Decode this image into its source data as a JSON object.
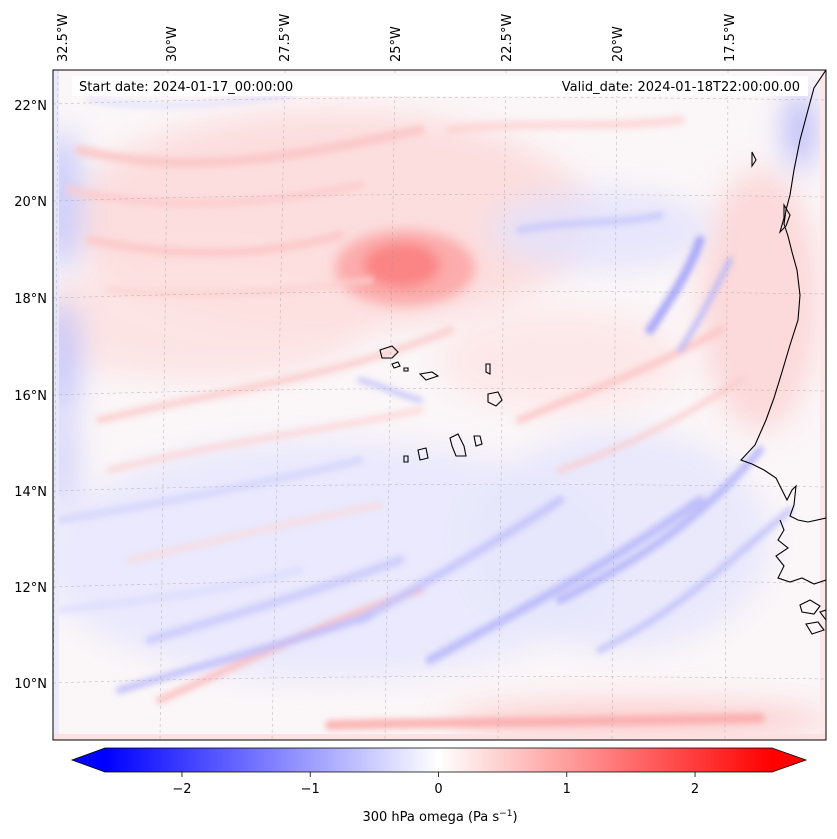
{
  "map": {
    "start_date": "Start date: 2024-01-17_00:00:00",
    "valid_date": "Valid_date: 2024-01-18T22:00:00.00",
    "lon_labels": [
      "32.5°W",
      "30°W",
      "27.5°W",
      "25°W",
      "22.5°W",
      "20°W",
      "17.5°W"
    ],
    "lat_labels": [
      "22°N",
      "20°N",
      "18°N",
      "16°N",
      "14°N",
      "12°N",
      "10°N"
    ],
    "gridlines": true,
    "field": "300 hPa omega",
    "colormap": "bwr"
  },
  "colorbar": {
    "ticks": [
      "−2",
      "−1",
      "0",
      "1",
      "2"
    ],
    "tick_values": [
      -2,
      -1,
      0,
      1,
      2
    ],
    "range": [
      -2.6,
      2.6
    ],
    "label": "300 hPa omega (Pa s",
    "label_sup": "−1",
    "label_end": ")",
    "colors": {
      "min": "#0000ff",
      "mid": "#ffffff",
      "max": "#ff0000"
    },
    "extend": "both"
  }
}
